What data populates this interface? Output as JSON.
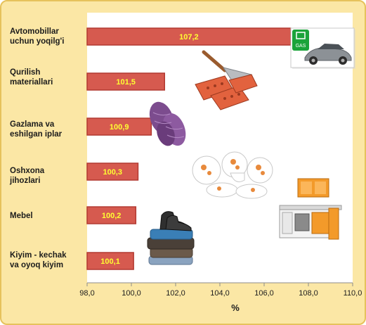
{
  "chart_data": {
    "type": "bar",
    "orientation": "horizontal",
    "categories": [
      [
        "Avtomobillar",
        "uchun yoqilg'i"
      ],
      [
        "Qurilish",
        "materiallari"
      ],
      [
        "Gazlama va",
        "eshilgan iplar"
      ],
      [
        "Oshxona",
        "jihozlari"
      ],
      [
        "Mebel"
      ],
      [
        "Kiyim - kechak",
        "va oyoq kiyim"
      ]
    ],
    "values": [
      107.2,
      101.5,
      100.9,
      100.3,
      100.2,
      100.1
    ],
    "data_labels": [
      "107,2",
      "101,5",
      "100,9",
      "100,3",
      "100,2",
      "100,1"
    ],
    "xlim": [
      98.0,
      110.0
    ],
    "xticks": [
      98.0,
      100.0,
      102.0,
      104.0,
      106.0,
      108.0,
      110.0
    ],
    "xtick_labels": [
      "98,0",
      "100,0",
      "102,0",
      "104,0",
      "106,0",
      "108,0",
      "110,0"
    ],
    "xlabel": "%",
    "ylabel": "",
    "title": "",
    "grid": false,
    "legend": "none",
    "colors": {
      "bar_fill": "#d65a4f",
      "bar_stroke": "#b23a32",
      "data_label": "#ffff33",
      "background": "#fbe7a5",
      "plot_area": "#ffffff"
    }
  },
  "pictures": {
    "car_badge": "GAS"
  }
}
